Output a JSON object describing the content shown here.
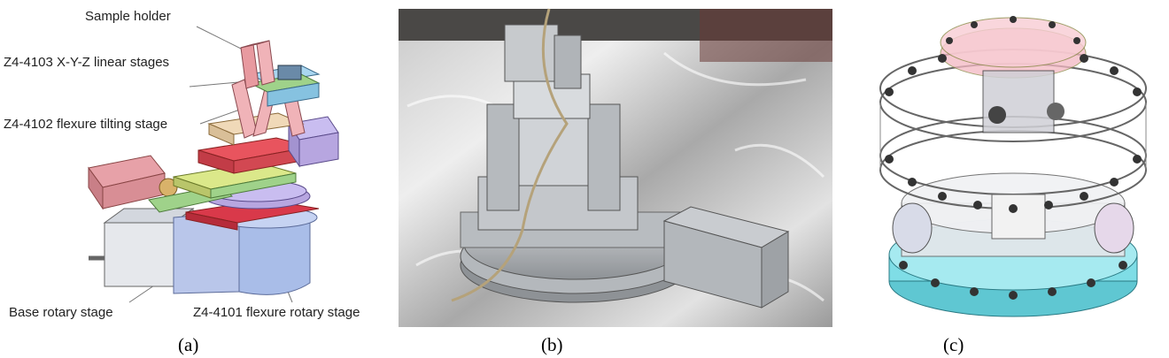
{
  "panels": [
    {
      "caption": "(a)",
      "labels": {
        "sample_holder": "Sample holder",
        "linear_stages": "Z4-4103 X-Y-Z linear stages",
        "tilting_stage": "Z4-4102 flexure tilting stage",
        "base_rotary": "Base rotary stage",
        "flexure_rotary": "Z4-4101 flexure rotary stage"
      }
    },
    {
      "caption": "(b)"
    },
    {
      "caption": "(c)"
    }
  ],
  "colors": {
    "pink": "#e89aa0",
    "red": "#d9394a",
    "blue": "#a9bde8",
    "green": "#9fd28a",
    "lavender": "#b7a6e0",
    "cyan": "#7fdde6",
    "gray": "#b8bcc4"
  }
}
